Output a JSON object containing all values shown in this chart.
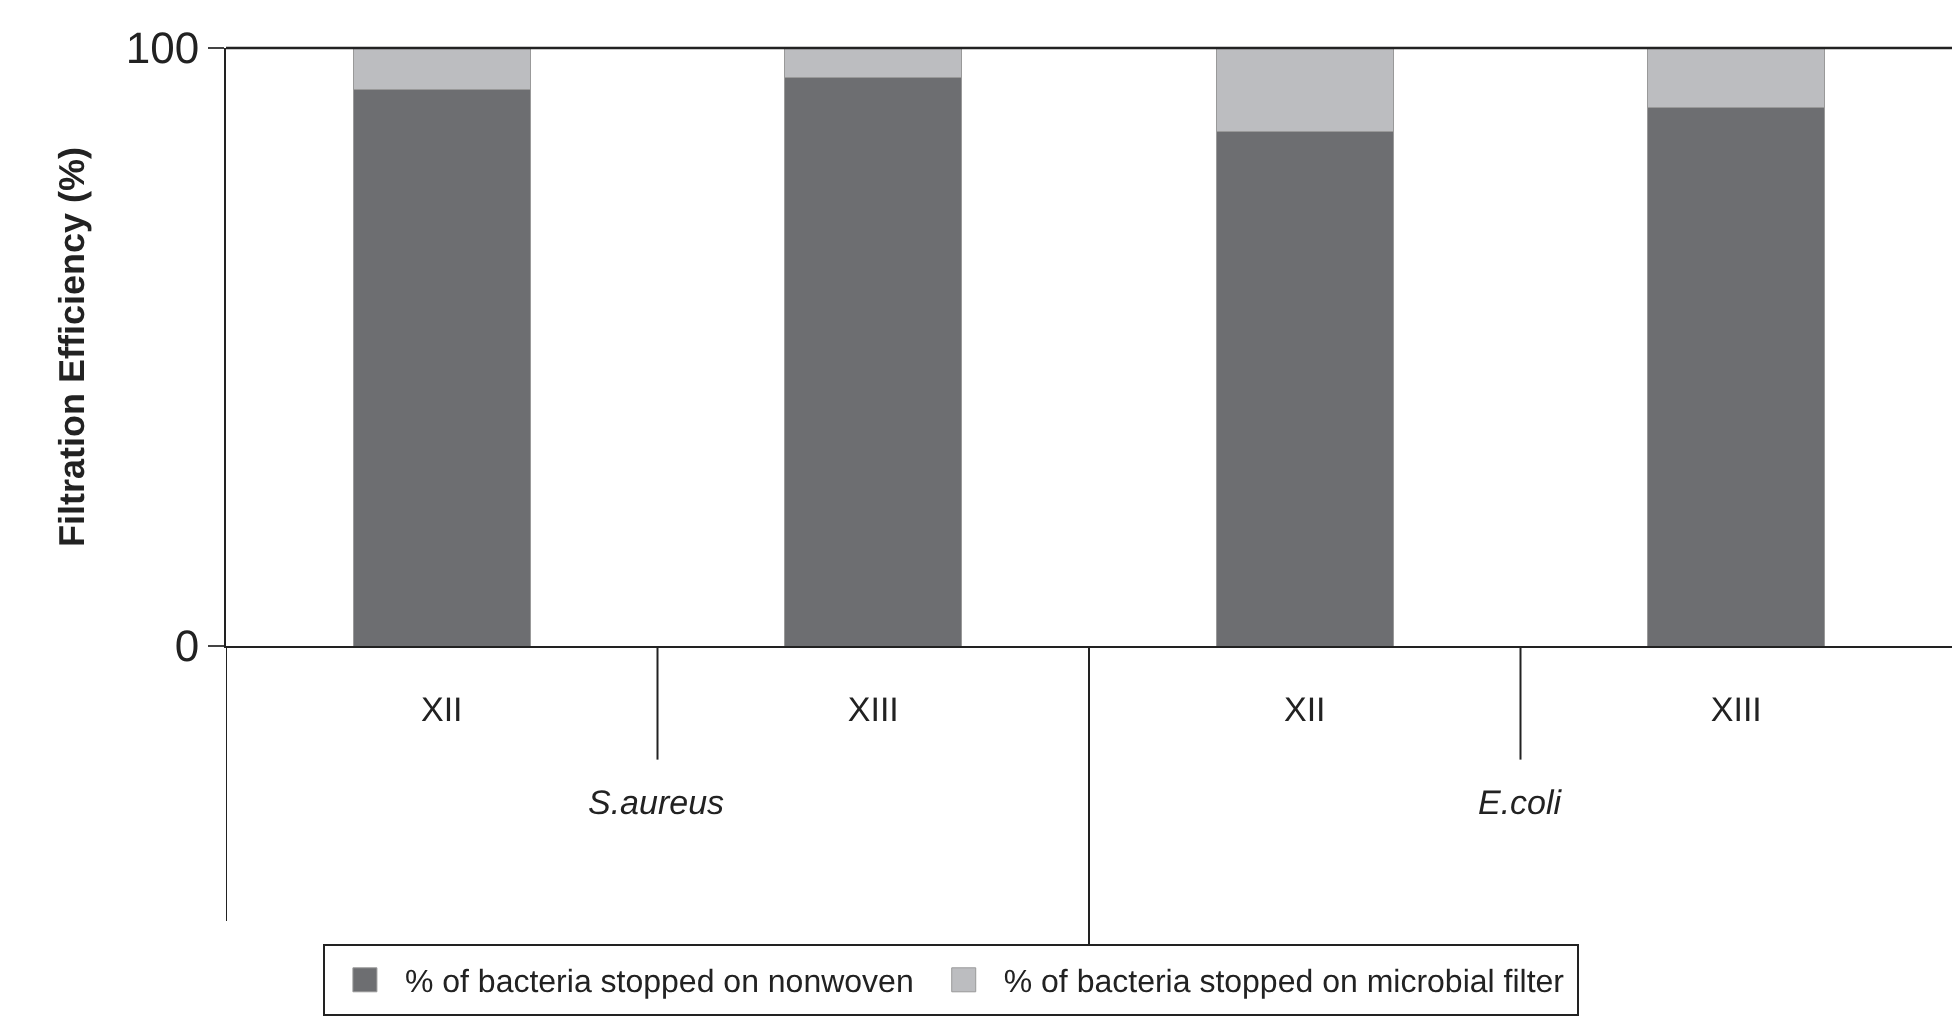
{
  "chart_data": {
    "type": "bar",
    "stacked": true,
    "ylabel": "Filtration Efficiency (%)",
    "categories": [
      "XII",
      "XIII",
      "XII",
      "XIII"
    ],
    "series": [
      {
        "name": "% of bacteria stopped on nonwoven",
        "color": "#6d6e71",
        "values": [
          93,
          95,
          86,
          90
        ]
      },
      {
        "name": "% of bacteria stopped on microbial filter",
        "color": "#bcbdc0",
        "values": [
          7,
          5,
          14,
          10
        ]
      }
    ],
    "annotations": [
      "S.aureus",
      "E.coli"
    ],
    "ylim": [
      0,
      100
    ],
    "yticks": [
      0,
      100
    ],
    "legend": "bottom"
  }
}
